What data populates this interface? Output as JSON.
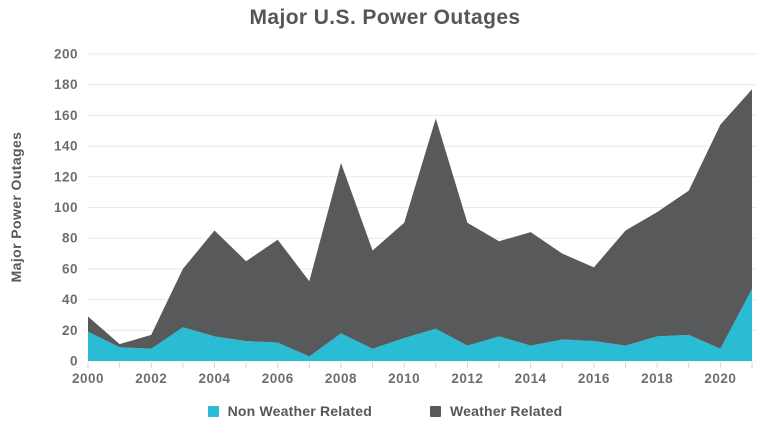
{
  "chart_data": {
    "type": "area",
    "stacked": true,
    "title": "Major U.S. Power Outages",
    "xlabel": "",
    "ylabel": "Major Power Outages",
    "x": [
      2000,
      2001,
      2002,
      2003,
      2004,
      2005,
      2006,
      2007,
      2008,
      2009,
      2010,
      2011,
      2012,
      2013,
      2014,
      2015,
      2016,
      2017,
      2018,
      2019,
      2020,
      2021
    ],
    "series": [
      {
        "name": "Non Weather Related",
        "color": "#29bcd4",
        "values": [
          19,
          9,
          8,
          22,
          16,
          13,
          12,
          3,
          18,
          8,
          15,
          21,
          10,
          16,
          10,
          14,
          13,
          10,
          16,
          17,
          8,
          47
        ]
      },
      {
        "name": "Weather Related",
        "color": "#58595b",
        "values": [
          10,
          2,
          9,
          38,
          69,
          52,
          67,
          49,
          111,
          64,
          75,
          137,
          80,
          62,
          74,
          56,
          48,
          75,
          81,
          94,
          146,
          130
        ]
      }
    ],
    "ylim": [
      0,
      200
    ],
    "y_ticks": [
      0,
      20,
      40,
      60,
      80,
      100,
      120,
      140,
      160,
      180,
      200
    ],
    "x_tick_labels": [
      2000,
      2002,
      2004,
      2006,
      2008,
      2010,
      2012,
      2014,
      2016,
      2018,
      2020
    ],
    "grid": "horizontal",
    "legend_position": "bottom"
  },
  "style_colors": {
    "title_text": "#54565a",
    "axis_tick_text": "#6d6e71",
    "gridline": "#e8e8e8",
    "tick_mark": "#d6d6d6",
    "background": "#ffffff"
  }
}
